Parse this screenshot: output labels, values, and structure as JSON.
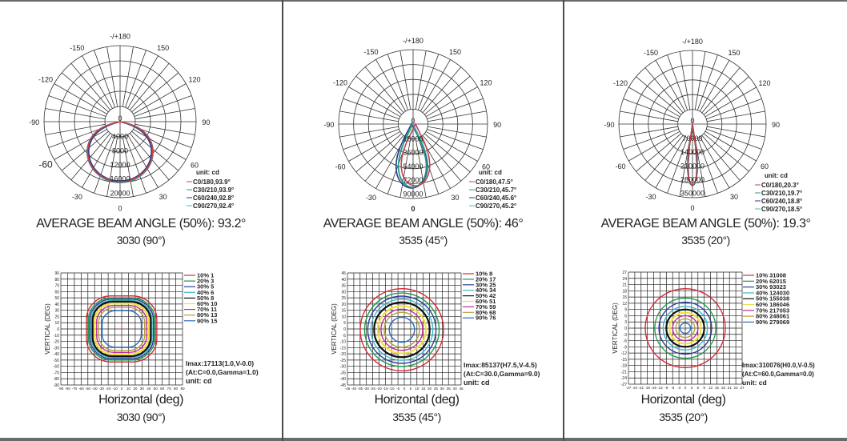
{
  "chart_data": [
    {
      "type": "polar",
      "title": "AVERAGE BEAM ANGLE (50%): 93.2°",
      "subtitle": "3030 (90°)",
      "angle_labels": [
        "-/+180",
        "150",
        "120",
        "90",
        "60",
        "30",
        "0",
        "-30",
        "-60",
        "-90",
        "-120",
        "-150"
      ],
      "radial_labels": [
        "0",
        "4000",
        "8000",
        "12000",
        "16000",
        "20000"
      ],
      "radial_max": 22000,
      "unit": "unit:  cd",
      "series": [
        {
          "name": "C0/180,93.9°",
          "color": "#d0404a"
        },
        {
          "name": "C30/210,93.9°",
          "color": "#2a9a86"
        },
        {
          "name": "C60/240,92.8°",
          "color": "#2a3c8a"
        },
        {
          "name": "C90/270,92.4°",
          "color": "#4ab8c0"
        }
      ],
      "beam_angle": 93.2,
      "peak_cd": 17113
    },
    {
      "type": "polar",
      "title": "AVERAGE BEAM ANGLE (50%): 46°",
      "subtitle": "3535 (45°)",
      "angle_labels": [
        "-/+180",
        "150",
        "120",
        "90",
        "60",
        "30",
        "0",
        "-30",
        "-60",
        "-90",
        "-120",
        "-150"
      ],
      "radial_labels": [
        "0",
        "18000",
        "36000",
        "54000",
        "72000",
        "90000"
      ],
      "radial_max": 99000,
      "unit": "unit:  cd",
      "series": [
        {
          "name": "C0/180,47.5°",
          "color": "#d0404a"
        },
        {
          "name": "C30/210,45.7°",
          "color": "#2a9a86"
        },
        {
          "name": "C60/240,45.6°",
          "color": "#2a3c8a"
        },
        {
          "name": "C90/270,45.2°",
          "color": "#4ab8c0"
        }
      ],
      "beam_angle": 46,
      "peak_cd": 85137
    },
    {
      "type": "polar",
      "title": "AVERAGE BEAM ANGLE (50%): 19.3°",
      "subtitle": "3535 (20°)",
      "angle_labels": [
        "-/+180",
        "150",
        "120",
        "90",
        "60",
        "30",
        "0",
        "-30",
        "-60",
        "-90",
        "-120",
        "-150"
      ],
      "radial_labels": [
        "0",
        "70000",
        "140000",
        "210000",
        "280000",
        "350000"
      ],
      "radial_max": 385000,
      "unit": "unit:  cd",
      "series": [
        {
          "name": "C0/180,20.3°",
          "color": "#d0404a"
        },
        {
          "name": "C30/210,19.7°",
          "color": "#2a9a86"
        },
        {
          "name": "C60/240,18.8°",
          "color": "#2a3c8a"
        },
        {
          "name": "C90/270,18.5°",
          "color": "#4ab8c0"
        }
      ],
      "beam_angle": 19.3,
      "peak_cd": 310076
    },
    {
      "type": "contour",
      "xlabel": "Horizontal (deg)",
      "ylabel": "VERTICAL (DEG)",
      "subtitle": "3030 (90°)",
      "range": 90,
      "step": 10,
      "levels": [
        {
          "pct": "10%",
          "value": "1",
          "color": "#d42a3a",
          "r": 52
        },
        {
          "pct": "20%",
          "value": "3",
          "color": "#1f9a4a",
          "r": 49
        },
        {
          "pct": "30%",
          "value": "5",
          "color": "#2a3c9a",
          "r": 47
        },
        {
          "pct": "40%",
          "value": "6",
          "color": "#3ab8c8",
          "r": 45
        },
        {
          "pct": "50%",
          "value": "8",
          "color": "#111111",
          "r": 43
        },
        {
          "pct": "60%",
          "value": "10",
          "color": "#f0e040",
          "r": 40
        },
        {
          "pct": "70%",
          "value": "11",
          "color": "#c02a9a",
          "r": 37
        },
        {
          "pct": "80%",
          "value": "13",
          "color": "#b0a040",
          "r": 34
        },
        {
          "pct": "90%",
          "value": "15",
          "color": "#2a6ab8",
          "r": 29
        }
      ],
      "imax": "Imax:17113(1.0,V-0.0)",
      "at": "(At:C=0.0,Gamma=1.0)",
      "unit": "unit: cd"
    },
    {
      "type": "contour",
      "xlabel": "Horizontal (deg)",
      "ylabel": "VERTICAL (DEG)",
      "subtitle": "3535 (45°)",
      "range": 45,
      "step": 5,
      "levels": [
        {
          "pct": "10%",
          "value": "8",
          "color": "#d42a3a",
          "r": 33
        },
        {
          "pct": "20%",
          "value": "17",
          "color": "#1f9a4a",
          "r": 29.5
        },
        {
          "pct": "30%",
          "value": "25",
          "color": "#2a3c9a",
          "r": 27
        },
        {
          "pct": "40%",
          "value": "34",
          "color": "#3ab8c8",
          "r": 24.5
        },
        {
          "pct": "50%",
          "value": "42",
          "color": "#111111",
          "r": 22
        },
        {
          "pct": "60%",
          "value": "51",
          "color": "#f0e040",
          "r": 19
        },
        {
          "pct": "70%",
          "value": "59",
          "color": "#c02a9a",
          "r": 16.5
        },
        {
          "pct": "80%",
          "value": "68",
          "color": "#b0a040",
          "r": 14
        },
        {
          "pct": "90%",
          "value": "76",
          "color": "#2a6ab8",
          "r": 10
        }
      ],
      "imax": "Imax:85137(H7.5,V-4.5)",
      "at": "(At:C=30.0,Gamma=9.0)",
      "unit": "unit: cd"
    },
    {
      "type": "contour",
      "xlabel": "Horizontal  (deg)",
      "ylabel": "VERTICAL (DEG)",
      "subtitle": "3535 (20°)",
      "range": 27,
      "step": 3,
      "levels": [
        {
          "pct": "10%",
          "value": "31008",
          "color": "#d42a3a",
          "r": 19
        },
        {
          "pct": "20%",
          "value": "62015",
          "color": "#1f9a4a",
          "r": 14.5
        },
        {
          "pct": "30%",
          "value": "93023",
          "color": "#2a3c9a",
          "r": 12.5
        },
        {
          "pct": "40%",
          "value": "124030",
          "color": "#3ab8c8",
          "r": 10.5
        },
        {
          "pct": "50%",
          "value": "155038",
          "color": "#111111",
          "r": 9
        },
        {
          "pct": "60%",
          "value": "186046",
          "color": "#f0e040",
          "r": 7.5
        },
        {
          "pct": "70%",
          "value": "217053",
          "color": "#c02a9a",
          "r": 6
        },
        {
          "pct": "80%",
          "value": "248061",
          "color": "#b0a040",
          "r": 4.5
        },
        {
          "pct": "90%",
          "value": "279069",
          "color": "#2a6ab8",
          "r": 2.5
        }
      ],
      "imax": "Imax:310076(H0.0,V-0.5)",
      "at": "(At:C=60.0,Gamma=0.0)",
      "unit": "unit: cd"
    }
  ],
  "panels": [
    {
      "beam_title": "AVERAGE BEAM ANGLE (50%): 93.2°",
      "model": "3030 (90°)",
      "iso_xlabel": "Horizontal (deg)",
      "iso_model": "3030 (90°)"
    },
    {
      "beam_title": "AVERAGE BEAM ANGLE (50%): 46°",
      "model": "3535 (45°)",
      "iso_xlabel": "Horizontal (deg)",
      "iso_model": "3535 (45°)"
    },
    {
      "beam_title": "AVERAGE BEAM ANGLE (50%): 19.3°",
      "model": "3535 (20°)",
      "iso_xlabel": "Horizontal  (deg)",
      "iso_model": "3535 (20°)"
    }
  ]
}
